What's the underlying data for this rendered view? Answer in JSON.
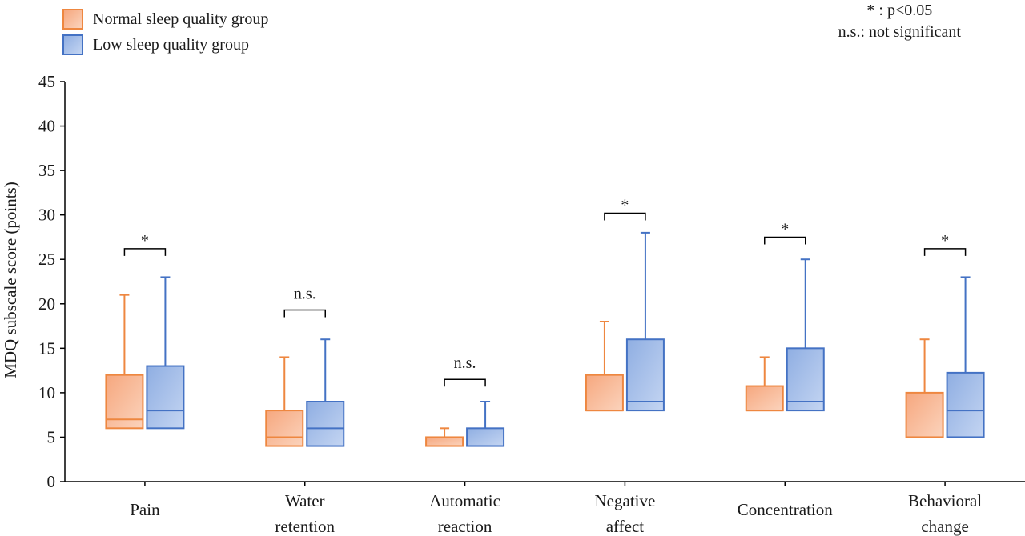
{
  "chart_data": {
    "type": "boxplot",
    "ylabel": "MDQ subscale score (points)",
    "ylim": [
      0,
      45
    ],
    "yticks": [
      0,
      5,
      10,
      15,
      20,
      25,
      30,
      35,
      40,
      45
    ],
    "categories": [
      "Pain",
      "Water retention",
      "Automatic reaction",
      "Negative affect",
      "Concentration",
      "Behavioral change"
    ],
    "category_lines": [
      [
        "Pain"
      ],
      [
        "Water",
        "retention"
      ],
      [
        "Automatic",
        "reaction"
      ],
      [
        "Negative",
        "affect"
      ],
      [
        "Concentration"
      ],
      [
        "Behavioral",
        "change"
      ]
    ],
    "series": [
      {
        "name": "Normal sleep quality group",
        "color": "#ee8740",
        "fill_from": "#f6a77e",
        "fill_to": "#fbd3bc",
        "boxes": [
          {
            "min": 6,
            "q1": 6,
            "median": 7,
            "q3": 12,
            "max": 21
          },
          {
            "min": 4,
            "q1": 4,
            "median": 5,
            "q3": 8,
            "max": 14
          },
          {
            "min": 4,
            "q1": 4,
            "median": 4,
            "q3": 5,
            "max": 6
          },
          {
            "min": 8,
            "q1": 8,
            "median": 8,
            "q3": 12,
            "max": 18
          },
          {
            "min": 8,
            "q1": 8,
            "median": 8,
            "q3": 10.75,
            "max": 14
          },
          {
            "min": 5,
            "q1": 5,
            "median": 5,
            "q3": 10,
            "max": 16
          }
        ]
      },
      {
        "name": "Low sleep quality group",
        "color": "#4472c4",
        "fill_from": "#8faee2",
        "fill_to": "#c4d5f2",
        "boxes": [
          {
            "min": 6,
            "q1": 6,
            "median": 8,
            "q3": 13,
            "max": 23
          },
          {
            "min": 4,
            "q1": 4,
            "median": 6,
            "q3": 9,
            "max": 16
          },
          {
            "min": 4,
            "q1": 4,
            "median": 4,
            "q3": 6,
            "max": 9
          },
          {
            "min": 8,
            "q1": 8,
            "median": 9,
            "q3": 16,
            "max": 28
          },
          {
            "min": 8,
            "q1": 8,
            "median": 9,
            "q3": 15,
            "max": 25
          },
          {
            "min": 5,
            "q1": 5,
            "median": 8,
            "q3": 12.25,
            "max": 23
          }
        ]
      }
    ],
    "significance": [
      {
        "label": "*",
        "level": 26.2
      },
      {
        "label": "n.s.",
        "level": 19.3
      },
      {
        "label": "n.s.",
        "level": 11.5
      },
      {
        "label": "*",
        "level": 30.2
      },
      {
        "label": "*",
        "level": 27.5
      },
      {
        "label": "*",
        "level": 26.2
      }
    ],
    "notes": [
      "* : p<0.05",
      "n.s.: not significant"
    ]
  }
}
